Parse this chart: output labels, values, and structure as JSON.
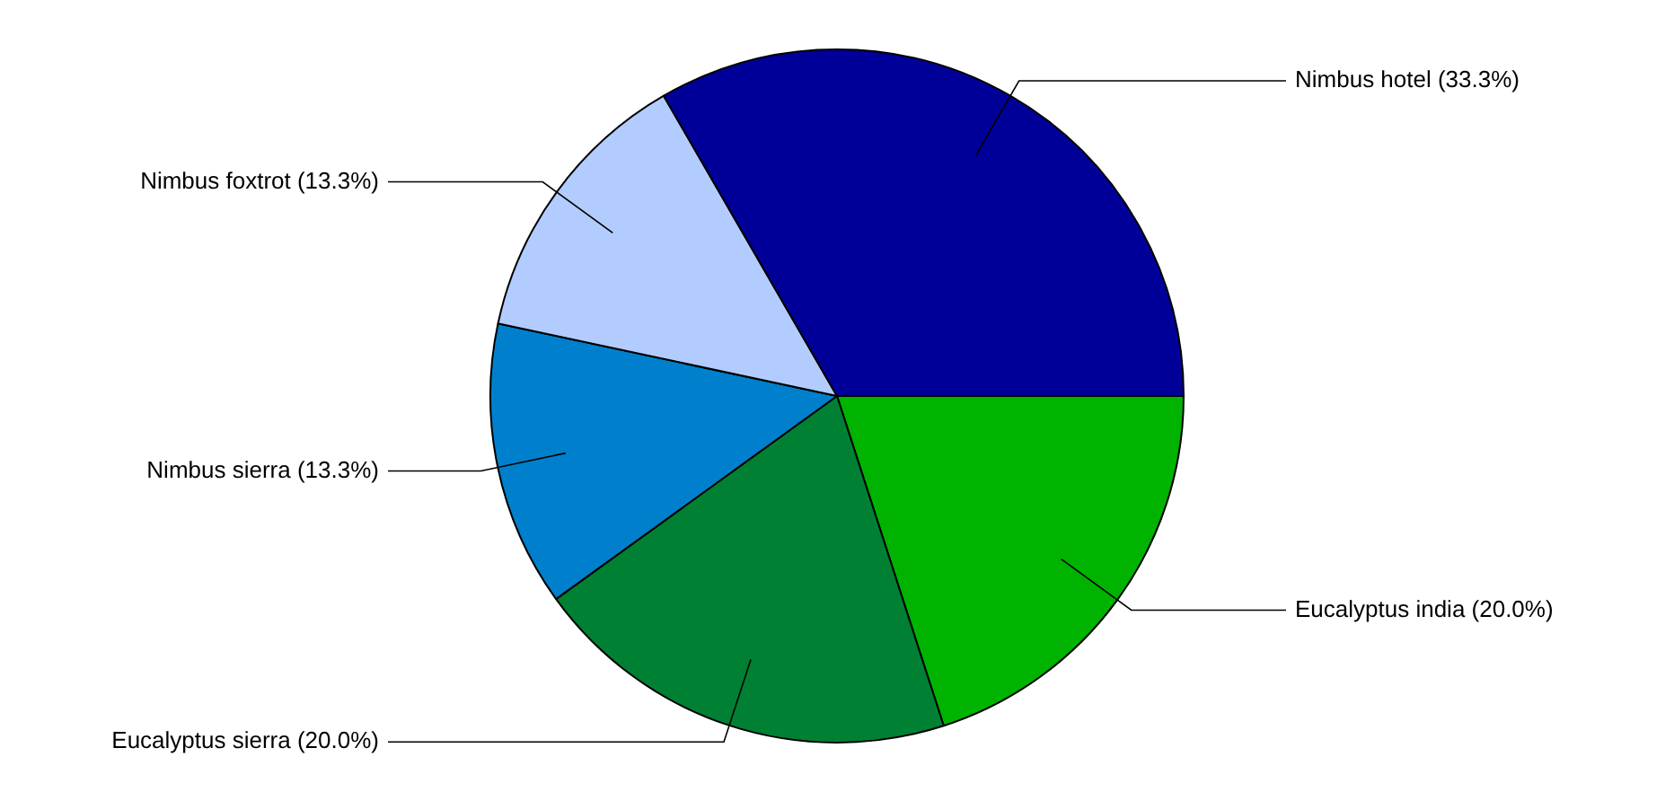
{
  "chart_data": {
    "type": "pie",
    "categories": [
      "Eucalyptus india",
      "Eucalyptus sierra",
      "Nimbus sierra",
      "Nimbus foxtrot",
      "Nimbus hotel"
    ],
    "values": [
      20.0,
      20.0,
      13.3,
      13.3,
      33.3
    ],
    "colors": [
      "#00b300",
      "#008033",
      "#0080cc",
      "#b3ccff",
      "#000099"
    ],
    "value_labels": [
      "(20.0%)",
      "(20.0%)",
      "(13.3%)",
      "(13.3%)",
      "(33.3%)"
    ],
    "legend": false
  }
}
